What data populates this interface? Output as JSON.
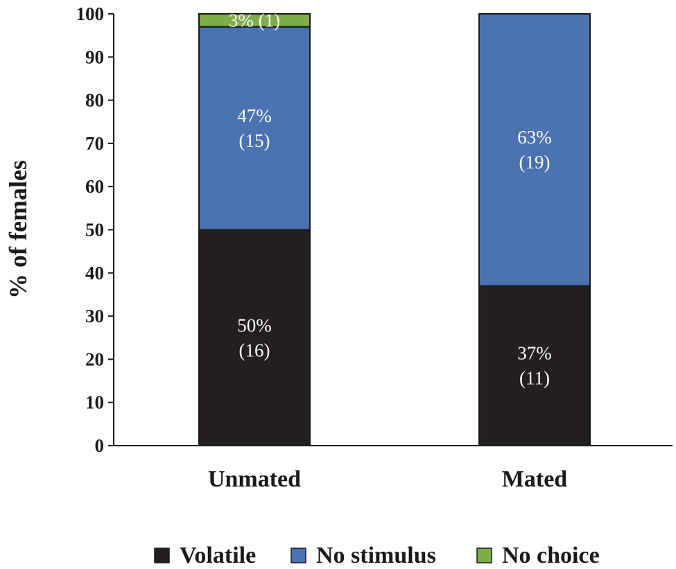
{
  "chart_data": {
    "type": "bar",
    "stacked": true,
    "ylabel": "% of females",
    "xlabel": "",
    "ylim": [
      0,
      100
    ],
    "yticks": [
      0,
      10,
      20,
      30,
      40,
      50,
      60,
      70,
      80,
      90,
      100
    ],
    "categories": [
      "Unmated",
      "Mated"
    ],
    "series": [
      {
        "name": "Volatile",
        "color": "#231f20",
        "values": [
          50,
          37
        ],
        "labels": [
          [
            "50%",
            "(16)"
          ],
          [
            "37%",
            "(11)"
          ]
        ]
      },
      {
        "name": "No stimulus",
        "color": "#4a72b0",
        "values": [
          47,
          63
        ],
        "labels": [
          [
            "47%",
            "(15)"
          ],
          [
            "63%",
            "(19)"
          ]
        ]
      },
      {
        "name": "No choice",
        "color": "#7fad4a",
        "values": [
          3,
          0
        ],
        "labels": [
          [
            "3% (1)"
          ],
          []
        ]
      }
    ],
    "legend_position": "bottom",
    "grid": false
  }
}
